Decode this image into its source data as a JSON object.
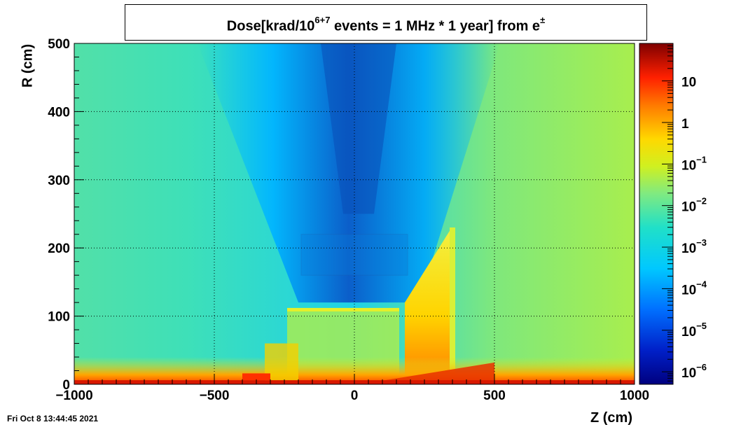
{
  "chart_data": {
    "type": "heatmap",
    "title": "Dose[krad/10",
    "title_exponent": "6+7",
    "title_rest": " events = 1 MHz * 1 year] from e",
    "title_sup": "±",
    "xlabel": "Z (cm)",
    "ylabel": "R (cm)",
    "xlim": [
      -1000,
      1000
    ],
    "ylim": [
      0,
      500
    ],
    "x_ticks": [
      "−1000",
      "−500",
      "0",
      "500",
      "1000"
    ],
    "x_tick_values": [
      -1000,
      -500,
      0,
      500,
      1000
    ],
    "y_ticks": [
      "0",
      "100",
      "200",
      "300",
      "400",
      "500"
    ],
    "y_tick_values": [
      0,
      100,
      200,
      300,
      400,
      500
    ],
    "grid": true,
    "colorbar": {
      "scale": "log",
      "range": [
        5e-07,
        80
      ],
      "labels": [
        {
          "value": 10,
          "base": "10",
          "exp": ""
        },
        {
          "value": 1,
          "base": "1",
          "exp": ""
        },
        {
          "value": 0.1,
          "base": "10",
          "exp": "−1"
        },
        {
          "value": 0.01,
          "base": "10",
          "exp": "−2"
        },
        {
          "value": 0.001,
          "base": "10",
          "exp": "−3"
        },
        {
          "value": 0.0001,
          "base": "10",
          "exp": "−4"
        },
        {
          "value": 1e-05,
          "base": "10",
          "exp": "−5"
        },
        {
          "value": 1e-06,
          "base": "10",
          "exp": "−6"
        }
      ]
    },
    "colormap": [
      "#00007f",
      "#0000ff",
      "#00bfff",
      "#20dfcf",
      "#7fe97f",
      "#d4f020",
      "#ffe000",
      "#ff8c00",
      "#ff2000",
      "#7f0000"
    ],
    "regions": [
      {
        "name": "background",
        "z": [
          -1000,
          1000
        ],
        "r": [
          0,
          500
        ],
        "log10_dose": -2.6
      },
      {
        "name": "beam-pipe-cone-low-dose",
        "z": [
          -320,
          320
        ],
        "r": [
          120,
          500
        ],
        "log10_dose": -4.6
      },
      {
        "name": "forward-cone-halo",
        "z": [
          -500,
          500
        ],
        "r": [
          150,
          500
        ],
        "log10_dose": -3.4
      },
      {
        "name": "central-region",
        "z": [
          -200,
          200
        ],
        "r": [
          0,
          110
        ],
        "log10_dose": -2.0
      },
      {
        "name": "forward-endcap-block",
        "z": [
          180,
          340
        ],
        "r": [
          0,
          220
        ],
        "log10_dose": -1.3
      },
      {
        "name": "barrel-low-radius-band",
        "z": [
          -1000,
          1000
        ],
        "r": [
          0,
          30
        ],
        "log10_dose": -1.0
      },
      {
        "name": "beamline-hot-strip",
        "z": [
          -1000,
          1000
        ],
        "r": [
          0,
          6
        ],
        "log10_dose": 0.5
      }
    ]
  },
  "timestamp": "Fri Oct  8 13:44:45 2021"
}
